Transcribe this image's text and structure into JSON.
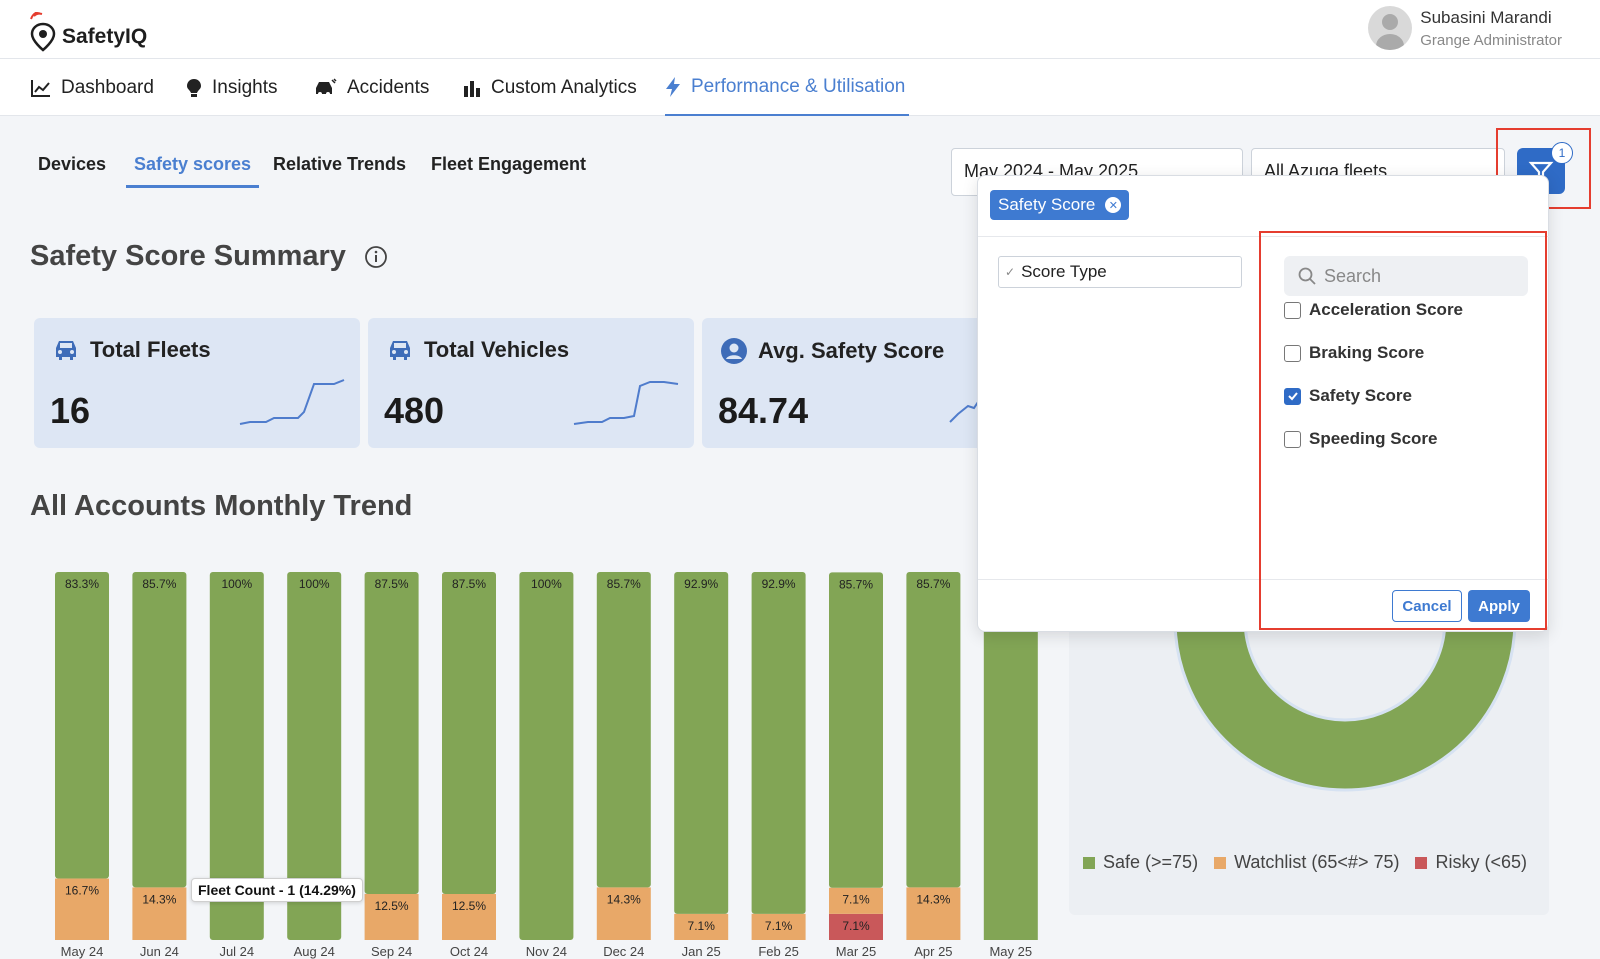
{
  "app": {
    "name": "SafetyIQ"
  },
  "user": {
    "name": "Subasini Marandi",
    "role": "Grange Administrator"
  },
  "nav": [
    {
      "label": "Dashboard",
      "icon": "line-chart-icon"
    },
    {
      "label": "Insights",
      "icon": "lightbulb-icon"
    },
    {
      "label": "Accidents",
      "icon": "car-crash-icon"
    },
    {
      "label": "Custom Analytics",
      "icon": "bar-chart-icon"
    },
    {
      "label": "Performance & Utilisation",
      "icon": "bolt-icon",
      "active": true
    }
  ],
  "subtabs": [
    {
      "label": "Devices"
    },
    {
      "label": "Safety scores",
      "active": true
    },
    {
      "label": "Relative Trends"
    },
    {
      "label": "Fleet Engagement"
    }
  ],
  "filters": {
    "date_range": "May 2024 - May 2025",
    "fleet": "All Azuga fleets",
    "badge_count": "1"
  },
  "summary": {
    "title": "Safety Score Summary",
    "cards": [
      {
        "title": "Total Fleets",
        "value": "16",
        "icon": "car-icon"
      },
      {
        "title": "Total Vehicles",
        "value": "480",
        "icon": "car-icon"
      },
      {
        "title": "Avg. Safety Score",
        "value": "84.74",
        "icon": "user-circle-icon"
      }
    ]
  },
  "trend": {
    "title": "All Accounts Monthly Trend",
    "tooltip": "Fleet Count - 1 (14.29%)"
  },
  "chart_data": {
    "type": "bar",
    "stacked": true,
    "categories": [
      "May 24",
      "Jun 24",
      "Jul 24",
      "Aug 24",
      "Sep 24",
      "Oct 24",
      "Nov 24",
      "Dec 24",
      "Jan 25",
      "Feb 25",
      "Mar 25",
      "Apr 25",
      "May 25"
    ],
    "series": [
      {
        "name": "Safe (>=75)",
        "color": "#82a555",
        "values": [
          83.3,
          85.7,
          100,
          100,
          87.5,
          87.5,
          100,
          85.7,
          92.9,
          92.9,
          85.7,
          85.7,
          null
        ],
        "labels": [
          "83.3%",
          "85.7%",
          "100%",
          "100%",
          "87.5%",
          "87.5%",
          "100%",
          "85.7%",
          "92.9%",
          "92.9%",
          "85.7%",
          "85.7%",
          ""
        ]
      },
      {
        "name": "Watchlist (65<#> 75)",
        "color": "#e8a868",
        "values": [
          16.7,
          14.3,
          0,
          0,
          12.5,
          12.5,
          0,
          14.3,
          7.1,
          7.1,
          7.1,
          14.3,
          null
        ],
        "labels": [
          "16.7%",
          "14.3%",
          "",
          "",
          "12.5%",
          "12.5%",
          "",
          "14.3%",
          "7.1%",
          "7.1%",
          "7.1%",
          "14.3%",
          ""
        ]
      },
      {
        "name": "Risky (<65)",
        "color": "#c9585a",
        "values": [
          0,
          0,
          0,
          0,
          0,
          0,
          0,
          0,
          0,
          0,
          7.1,
          0,
          null
        ],
        "labels": [
          "",
          "",
          "",
          "",
          "",
          "",
          "",
          "",
          "",
          "",
          "7.1%",
          "",
          ""
        ]
      }
    ],
    "ylim": [
      0,
      100
    ]
  },
  "donut": {
    "legend": [
      {
        "label": "Safe (>=75)",
        "color": "#82a555"
      },
      {
        "label": "Watchlist (65<#> 75)",
        "color": "#e8a868"
      },
      {
        "label": "Risky (<65)",
        "color": "#c9585a"
      }
    ]
  },
  "popover": {
    "chip": "Safety Score",
    "score_type": "Score Type",
    "search_placeholder": "Search",
    "options": [
      {
        "label": "Acceleration Score",
        "checked": false
      },
      {
        "label": "Braking Score",
        "checked": false
      },
      {
        "label": "Safety Score",
        "checked": true
      },
      {
        "label": "Speeding Score",
        "checked": false
      }
    ],
    "cancel": "Cancel",
    "apply": "Apply"
  },
  "colors": {
    "accent": "#4a7fd0",
    "highlight": "#e53d2f"
  }
}
